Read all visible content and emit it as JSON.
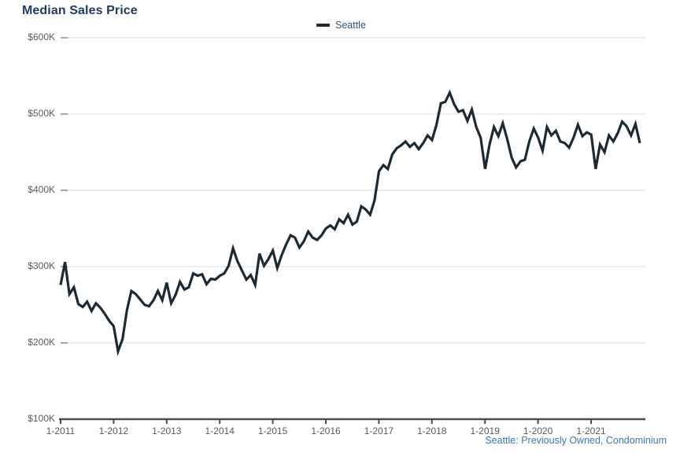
{
  "title": "Median Sales Price",
  "legend": {
    "items": [
      {
        "label": "Seattle",
        "color": "#1b2a33"
      }
    ]
  },
  "footer": {
    "caption": "Seattle: Previously Owned, Condominium"
  },
  "colors": {
    "title_text": "#1f3c64",
    "legend_text": "#32556e",
    "line": "#1b2a33",
    "gridline": "#d9d9d9",
    "grid_tick_stub": "#8c8c8c",
    "axis_line": "#4d4d4d",
    "axis_text": "#595959",
    "caption_text": "#3e78b4",
    "background": "#ffffff"
  },
  "chart_data": {
    "type": "line",
    "title": "Median Sales Price",
    "unit": "USD",
    "values_scale": "thousands",
    "x_frequency": "monthly",
    "x_start": "2011-01",
    "x_end": "2021-12",
    "x_tick_labels": [
      "1-2011",
      "1-2012",
      "1-2013",
      "1-2014",
      "1-2015",
      "1-2016",
      "1-2017",
      "1-2018",
      "1-2019",
      "1-2020",
      "1-2021"
    ],
    "y_tick_labels": [
      "$100K",
      "$200K",
      "$300K",
      "$400K",
      "$500K",
      "$600K"
    ],
    "ylim_thousands": [
      100,
      600
    ],
    "grid": "horizontal-only",
    "legend_position": "top-center",
    "series": [
      {
        "name": "Seattle",
        "color": "#1b2a33",
        "values_thousands": [
          276,
          306,
          264,
          273,
          251,
          247,
          254,
          242,
          252,
          246,
          238,
          229,
          222,
          189,
          205,
          243,
          268,
          264,
          257,
          250,
          248,
          256,
          268,
          256,
          279,
          252,
          263,
          280,
          270,
          273,
          291,
          288,
          290,
          277,
          284,
          283,
          288,
          291,
          301,
          324,
          307,
          295,
          283,
          289,
          276,
          317,
          301,
          310,
          321,
          298,
          315,
          329,
          341,
          338,
          325,
          333,
          346,
          338,
          335,
          341,
          350,
          354,
          349,
          362,
          357,
          368,
          355,
          359,
          379,
          375,
          368,
          387,
          425,
          433,
          428,
          447,
          455,
          459,
          464,
          457,
          462,
          454,
          462,
          472,
          466,
          486,
          514,
          516,
          528,
          513,
          503,
          505,
          491,
          506,
          483,
          469,
          428,
          460,
          483,
          471,
          488,
          467,
          443,
          430,
          438,
          440,
          464,
          481,
          469,
          452,
          483,
          472,
          478,
          464,
          462,
          456,
          469,
          486,
          471,
          476,
          473,
          428,
          460,
          450,
          472,
          464,
          475,
          490,
          484,
          472,
          487,
          462
        ]
      }
    ]
  }
}
